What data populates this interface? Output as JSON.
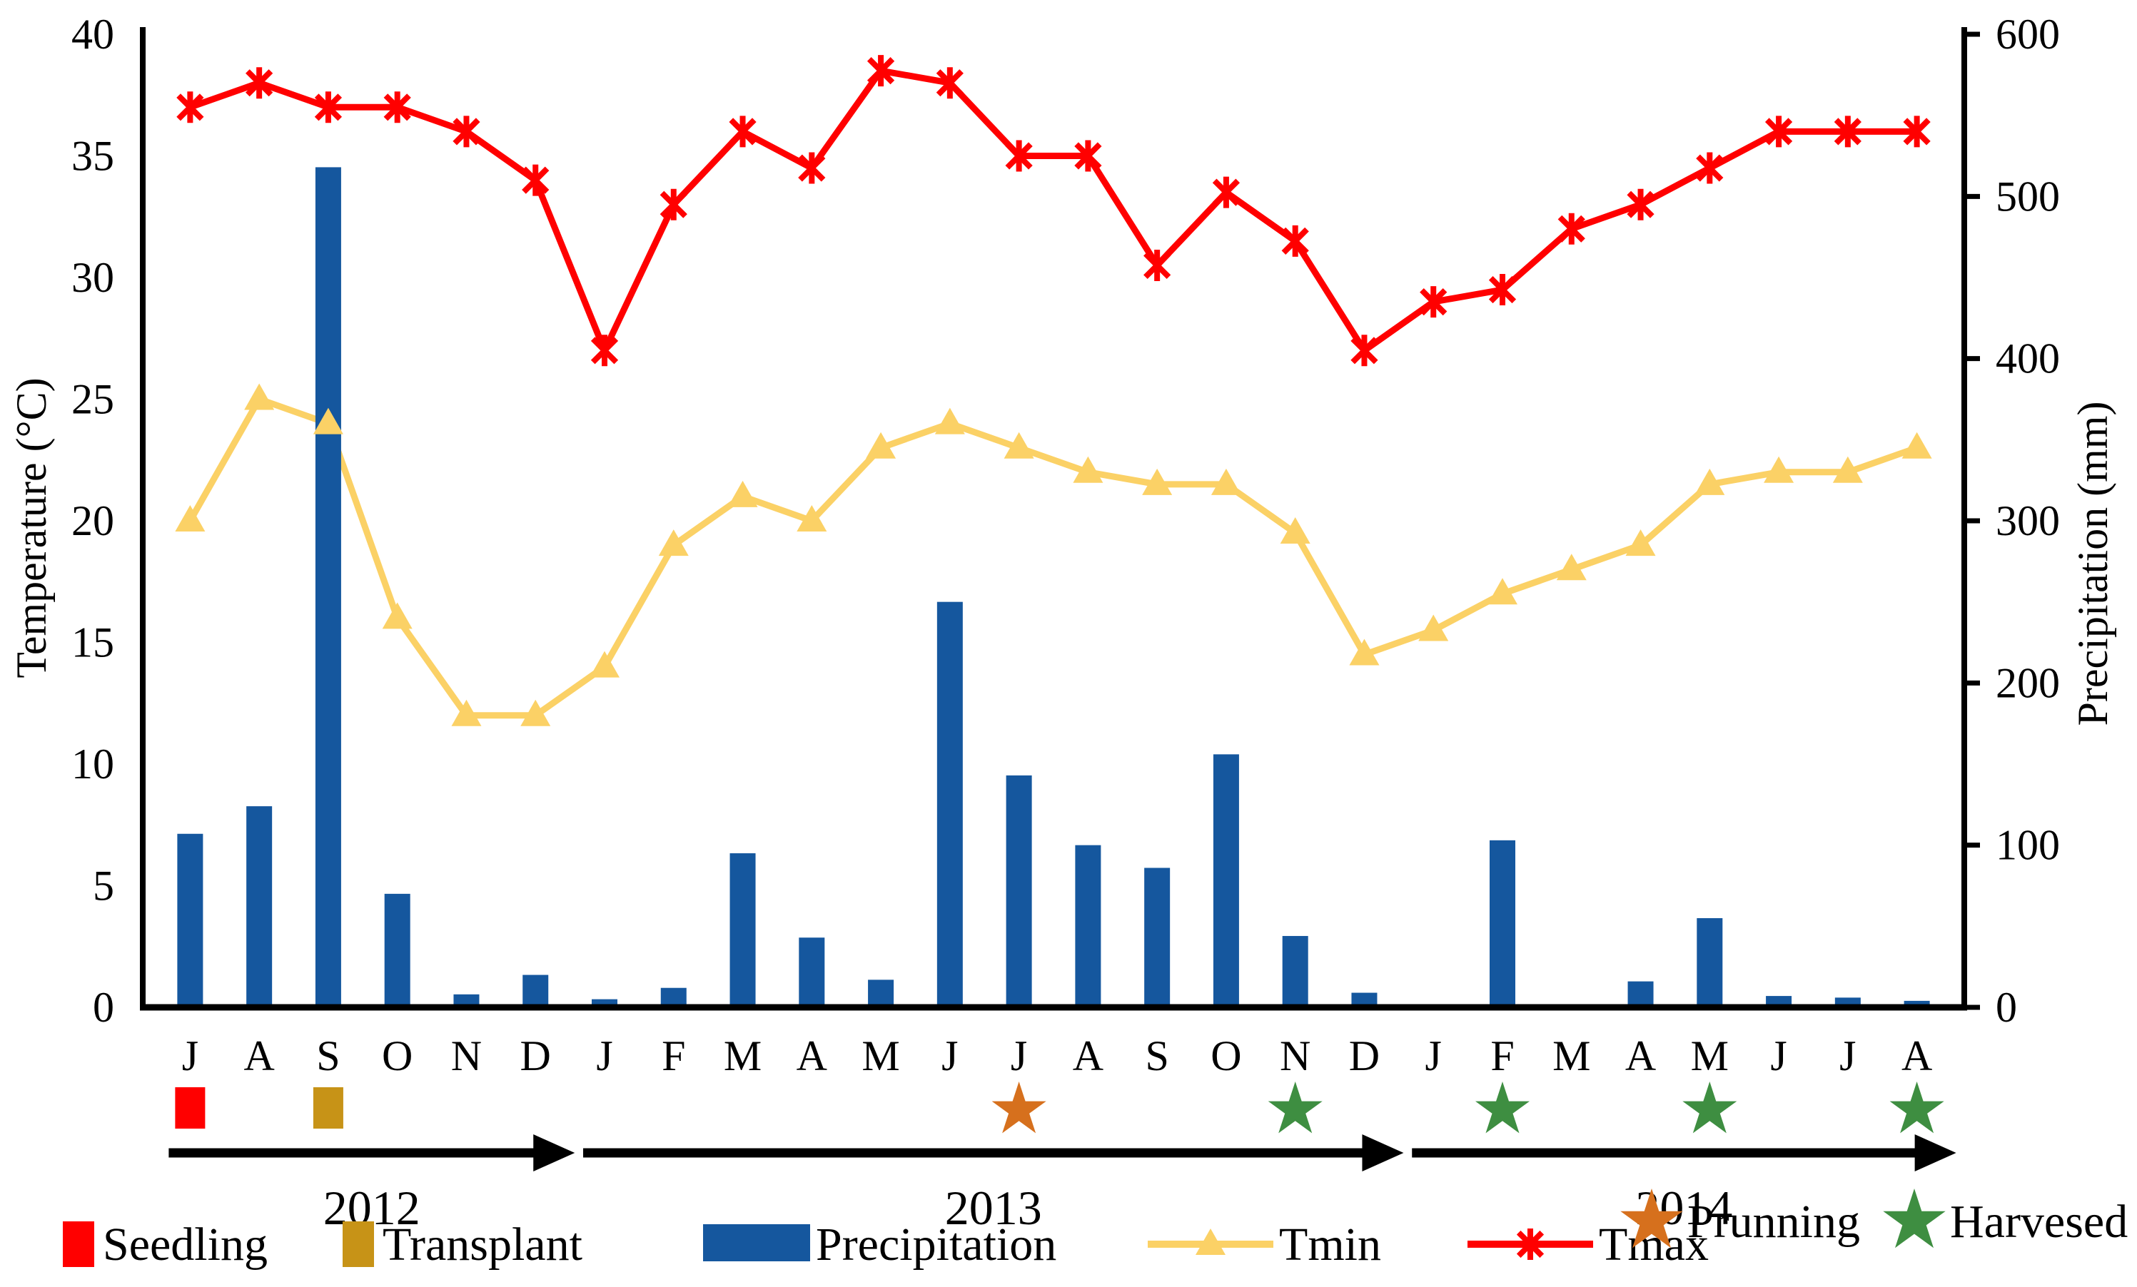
{
  "chart_data": {
    "type": "bar+line",
    "months": [
      "J",
      "A",
      "S",
      "O",
      "N",
      "D",
      "J",
      "F",
      "M",
      "A",
      "M",
      "J",
      "J",
      "A",
      "S",
      "O",
      "N",
      "D",
      "J",
      "F",
      "M",
      "A",
      "M",
      "J",
      "J",
      "A"
    ],
    "years": [
      {
        "label": "2012",
        "start_index": 0,
        "end_index": 5
      },
      {
        "label": "2013",
        "start_index": 6,
        "end_index": 17
      },
      {
        "label": "2014",
        "start_index": 18,
        "end_index": 25
      }
    ],
    "left_axis": {
      "title": "Temperature (°C)",
      "min": 0,
      "max": 40,
      "ticks": [
        0,
        5,
        10,
        15,
        20,
        25,
        30,
        35,
        40
      ]
    },
    "right_axis": {
      "title": "Precipitation (mm)",
      "min": 0,
      "max": 600,
      "ticks": [
        0,
        100,
        200,
        300,
        400,
        500,
        600
      ]
    },
    "grid": false,
    "series": [
      {
        "name": "Precipitation",
        "type": "bar",
        "axis": "right",
        "color": "#15579E",
        "values": [
          107,
          124,
          518,
          70,
          8,
          20,
          5,
          12,
          95,
          43,
          17,
          250,
          143,
          100,
          86,
          156,
          44,
          9,
          0,
          103,
          0,
          16,
          55,
          7,
          6,
          4
        ]
      },
      {
        "name": "Tmin",
        "type": "line",
        "axis": "left",
        "color": "#FBD166",
        "marker": "triangle",
        "values": [
          20,
          25,
          24,
          16,
          12,
          12,
          14,
          19,
          21,
          20,
          23,
          24,
          23,
          22,
          21.5,
          21.5,
          19.5,
          14.5,
          15.5,
          17,
          18,
          19,
          21.5,
          22,
          22,
          23
        ]
      },
      {
        "name": "Tmax",
        "type": "line",
        "axis": "left",
        "color": "#FF0000",
        "marker": "asterisk",
        "values": [
          37,
          38,
          37,
          37,
          36,
          34,
          27,
          33,
          36,
          34.5,
          38.5,
          38,
          35,
          35,
          30.5,
          33.5,
          31.5,
          27,
          29,
          29.5,
          32,
          33,
          34.5,
          36,
          36,
          36
        ]
      }
    ],
    "events": [
      {
        "name": "seedling",
        "marker": "square",
        "color": "#FF0000",
        "month_index": 0
      },
      {
        "name": "transplant",
        "marker": "square",
        "color": "#C79317",
        "month_index": 2
      },
      {
        "name": "prunning",
        "marker": "star",
        "color": "#D6701D",
        "month_index": 12
      },
      {
        "name": "harvested",
        "marker": "star",
        "color": "#3E8E41",
        "month_index": 16
      },
      {
        "name": "harvested",
        "marker": "star",
        "color": "#3E8E41",
        "month_index": 19
      },
      {
        "name": "harvested",
        "marker": "star",
        "color": "#3E8E41",
        "month_index": 22
      },
      {
        "name": "harvested",
        "marker": "star",
        "color": "#3E8E41",
        "month_index": 25
      }
    ],
    "legend": [
      {
        "id": "seedling",
        "label": "Seedling",
        "swatch": "square",
        "color": "#FF0000"
      },
      {
        "id": "transplant",
        "label": "Transplant",
        "swatch": "square",
        "color": "#C79317"
      },
      {
        "id": "precipitation",
        "label": "Precipitation",
        "swatch": "bar",
        "color": "#15579E"
      },
      {
        "id": "tmin",
        "label": "Tmin",
        "swatch": "triangle-line",
        "color": "#FBD166"
      },
      {
        "id": "tmax",
        "label": "Tmax",
        "swatch": "asterisk-line",
        "color": "#FF0000"
      },
      {
        "id": "prunning",
        "label": "Prunning",
        "swatch": "star",
        "color": "#D6701D"
      },
      {
        "id": "harvesed",
        "label": "Harvesed",
        "swatch": "star",
        "color": "#3E8E41"
      }
    ],
    "axis_color": "#000000"
  }
}
